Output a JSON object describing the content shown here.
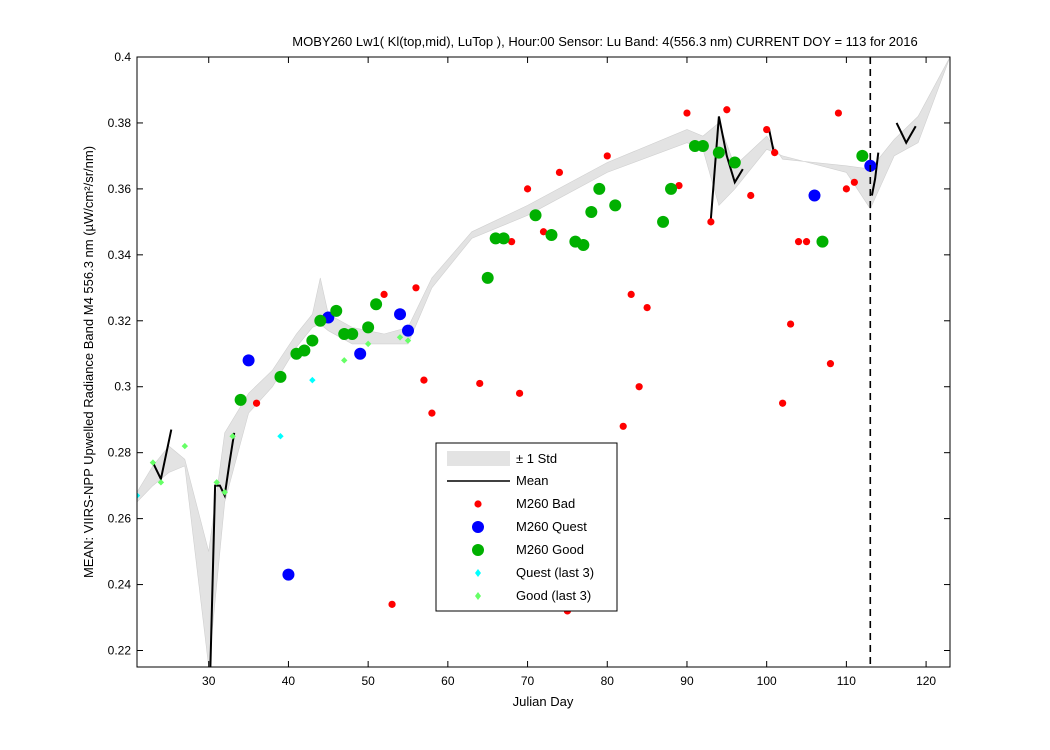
{
  "chart_data": {
    "type": "scatter",
    "title": "MOBY260   Lw1( Kl(top,mid), LuTop ),   Hour:00 Sensor: Lu Band: 4(556.3 nm)   CURRENT DOY = 113 for 2016",
    "xlabel": "Julian Day",
    "ylabel": "MEAN: VIIRS-NPP Upwelled Radiance Band M4 556.3 nm (µW/cm²/sr/nm)",
    "xlim": [
      21,
      123
    ],
    "ylim": [
      0.215,
      0.4
    ],
    "x_ticks": [
      30,
      40,
      50,
      60,
      70,
      80,
      90,
      100,
      110,
      120
    ],
    "y_ticks": [
      0.22,
      0.24,
      0.26,
      0.28,
      0.3,
      0.32,
      0.34,
      0.36,
      0.38,
      0.4
    ],
    "x_tick_labels": [
      "30",
      "40",
      "50",
      "60",
      "70",
      "80",
      "90",
      "100",
      "110",
      "120"
    ],
    "y_tick_labels": [
      "0.22",
      "0.24",
      "0.26",
      "0.28",
      "0.3",
      "0.32",
      "0.34",
      "0.36",
      "0.38",
      "0.4"
    ],
    "current_day_line": 113,
    "legend_position": "center-bottom",
    "legend": [
      "± 1 Std",
      "Mean",
      "M260 Bad",
      "M260 Quest",
      "M260 Good",
      "Quest (last 3)",
      "Good (last 3)"
    ],
    "colors": {
      "std": "#e3e3e3",
      "mean": "#000000",
      "bad": "#ff0000",
      "quest": "#0000ff",
      "good": "#00b000",
      "quest_last3": "#00ffff",
      "good_last3": "#66ff66"
    },
    "std_upper": [
      [
        21,
        0.268
      ],
      [
        23,
        0.276
      ],
      [
        25,
        0.282
      ],
      [
        27,
        0.278
      ],
      [
        30,
        0.25
      ],
      [
        32,
        0.286
      ],
      [
        35,
        0.298
      ],
      [
        38,
        0.305
      ],
      [
        41,
        0.316
      ],
      [
        43,
        0.322
      ],
      [
        44,
        0.333
      ],
      [
        45,
        0.322
      ],
      [
        48,
        0.318
      ],
      [
        52,
        0.316
      ],
      [
        55,
        0.318
      ],
      [
        58,
        0.333
      ],
      [
        63,
        0.347
      ],
      [
        70,
        0.355
      ],
      [
        80,
        0.368
      ],
      [
        90,
        0.378
      ],
      [
        92,
        0.376
      ],
      [
        94,
        0.38
      ],
      [
        96,
        0.367
      ],
      [
        100,
        0.376
      ],
      [
        102,
        0.369
      ],
      [
        110,
        0.367
      ],
      [
        113,
        0.366
      ],
      [
        116,
        0.375
      ],
      [
        119,
        0.382
      ],
      [
        123,
        0.4
      ]
    ],
    "std_lower": [
      [
        123,
        0.4
      ],
      [
        119,
        0.374
      ],
      [
        116,
        0.37
      ],
      [
        113,
        0.354
      ],
      [
        110,
        0.365
      ],
      [
        102,
        0.37
      ],
      [
        100,
        0.372
      ],
      [
        96,
        0.36
      ],
      [
        94,
        0.355
      ],
      [
        92,
        0.372
      ],
      [
        90,
        0.374
      ],
      [
        80,
        0.365
      ],
      [
        70,
        0.352
      ],
      [
        63,
        0.345
      ],
      [
        58,
        0.33
      ],
      [
        55,
        0.313
      ],
      [
        52,
        0.313
      ],
      [
        48,
        0.313
      ],
      [
        45,
        0.317
      ],
      [
        44,
        0.319
      ],
      [
        43,
        0.318
      ],
      [
        41,
        0.312
      ],
      [
        38,
        0.3
      ],
      [
        35,
        0.292
      ],
      [
        32,
        0.265
      ],
      [
        30,
        0.215
      ],
      [
        27,
        0.276
      ],
      [
        25,
        0.274
      ],
      [
        23,
        0.27
      ],
      [
        21,
        0.265
      ]
    ],
    "mean_segments": [
      [
        [
          23,
          0.277
        ],
        [
          24,
          0.272
        ],
        [
          25.3,
          0.287
        ]
      ],
      [
        [
          30.2,
          0.214
        ],
        [
          30.8,
          0.27
        ],
        [
          31.4,
          0.27
        ],
        [
          32,
          0.267
        ],
        [
          32.6,
          0.277
        ],
        [
          33.2,
          0.286
        ]
      ],
      [
        [
          93,
          0.351
        ],
        [
          94,
          0.382
        ],
        [
          95,
          0.37
        ],
        [
          96,
          0.362
        ],
        [
          97,
          0.366
        ]
      ],
      [
        [
          100.3,
          0.378
        ],
        [
          100.9,
          0.371
        ]
      ],
      [
        [
          113.2,
          0.358
        ],
        [
          113.6,
          0.363
        ],
        [
          114,
          0.371
        ]
      ],
      [
        [
          116.3,
          0.38
        ],
        [
          117.5,
          0.374
        ],
        [
          118.7,
          0.379
        ]
      ]
    ],
    "series": [
      {
        "name": "M260 Bad",
        "marker": "dot",
        "points": [
          [
            36,
            0.295
          ],
          [
            52,
            0.328
          ],
          [
            53,
            0.234
          ],
          [
            56,
            0.33
          ],
          [
            57,
            0.302
          ],
          [
            58,
            0.292
          ],
          [
            64,
            0.301
          ],
          [
            68,
            0.344
          ],
          [
            69,
            0.298
          ],
          [
            70,
            0.36
          ],
          [
            72,
            0.347
          ],
          [
            74,
            0.365
          ],
          [
            75,
            0.232
          ],
          [
            80,
            0.37
          ],
          [
            82,
            0.288
          ],
          [
            83,
            0.328
          ],
          [
            84,
            0.3
          ],
          [
            85,
            0.324
          ],
          [
            89,
            0.361
          ],
          [
            90,
            0.383
          ],
          [
            93,
            0.35
          ],
          [
            95,
            0.384
          ],
          [
            98,
            0.358
          ],
          [
            100,
            0.378
          ],
          [
            101,
            0.371
          ],
          [
            102,
            0.295
          ],
          [
            103,
            0.319
          ],
          [
            104,
            0.344
          ],
          [
            105,
            0.344
          ],
          [
            108,
            0.307
          ],
          [
            109,
            0.383
          ],
          [
            110,
            0.36
          ],
          [
            111,
            0.362
          ]
        ]
      },
      {
        "name": "M260 Quest",
        "marker": "circle",
        "points": [
          [
            35,
            0.308
          ],
          [
            40,
            0.243
          ],
          [
            45,
            0.321
          ],
          [
            49,
            0.31
          ],
          [
            54,
            0.322
          ],
          [
            55,
            0.317
          ],
          [
            106,
            0.358
          ],
          [
            113,
            0.367
          ]
        ]
      },
      {
        "name": "M260 Good",
        "marker": "circle",
        "points": [
          [
            34,
            0.296
          ],
          [
            39,
            0.303
          ],
          [
            41,
            0.31
          ],
          [
            42,
            0.311
          ],
          [
            43,
            0.314
          ],
          [
            44,
            0.32
          ],
          [
            46,
            0.323
          ],
          [
            47,
            0.316
          ],
          [
            48,
            0.316
          ],
          [
            50,
            0.318
          ],
          [
            51,
            0.325
          ],
          [
            65,
            0.333
          ],
          [
            66,
            0.345
          ],
          [
            67,
            0.345
          ],
          [
            71,
            0.352
          ],
          [
            73,
            0.346
          ],
          [
            76,
            0.344
          ],
          [
            77,
            0.343
          ],
          [
            78,
            0.353
          ],
          [
            79,
            0.36
          ],
          [
            81,
            0.355
          ],
          [
            87,
            0.35
          ],
          [
            88,
            0.36
          ],
          [
            91,
            0.373
          ],
          [
            92,
            0.373
          ],
          [
            94,
            0.371
          ],
          [
            96,
            0.368
          ],
          [
            107,
            0.344
          ],
          [
            112,
            0.37
          ]
        ]
      },
      {
        "name": "Quest (last 3)",
        "marker": "diamond",
        "points": [
          [
            21,
            0.267
          ],
          [
            39,
            0.285
          ],
          [
            43,
            0.302
          ]
        ]
      },
      {
        "name": "Good (last 3)",
        "marker": "diamond",
        "points": [
          [
            23,
            0.277
          ],
          [
            24,
            0.271
          ],
          [
            27,
            0.282
          ],
          [
            31,
            0.271
          ],
          [
            32,
            0.268
          ],
          [
            33,
            0.285
          ],
          [
            47,
            0.308
          ],
          [
            50,
            0.313
          ],
          [
            54,
            0.315
          ],
          [
            55,
            0.314
          ]
        ]
      }
    ]
  }
}
